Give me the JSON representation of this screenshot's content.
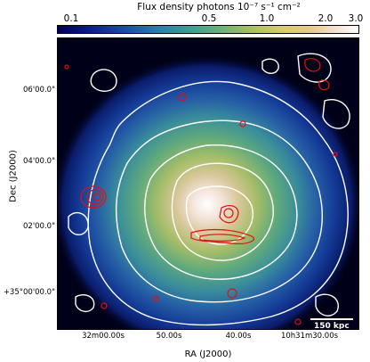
{
  "colorbar": {
    "title": "Flux density photons 10⁻⁷ s⁻¹ cm⁻²",
    "ticks": [
      "0.1",
      "0.5",
      "1.0",
      "2.0",
      "3.0"
    ]
  },
  "axes": {
    "ylabel": "Dec (J2000)",
    "xlabel": "RA (J2000)",
    "yticks": [
      "06'00.0\"",
      "04'00.0\"",
      "02'00.0\"",
      "+35°00'00.0\""
    ],
    "xticks": [
      "32m00.00s",
      "50.00s",
      "40.00s",
      "10h31m30.00s"
    ]
  },
  "scalebar": {
    "label": "150 kpc"
  },
  "colors": {
    "contour_white": "#ffffff",
    "contour_red": "#e01010",
    "background": "#000018"
  }
}
